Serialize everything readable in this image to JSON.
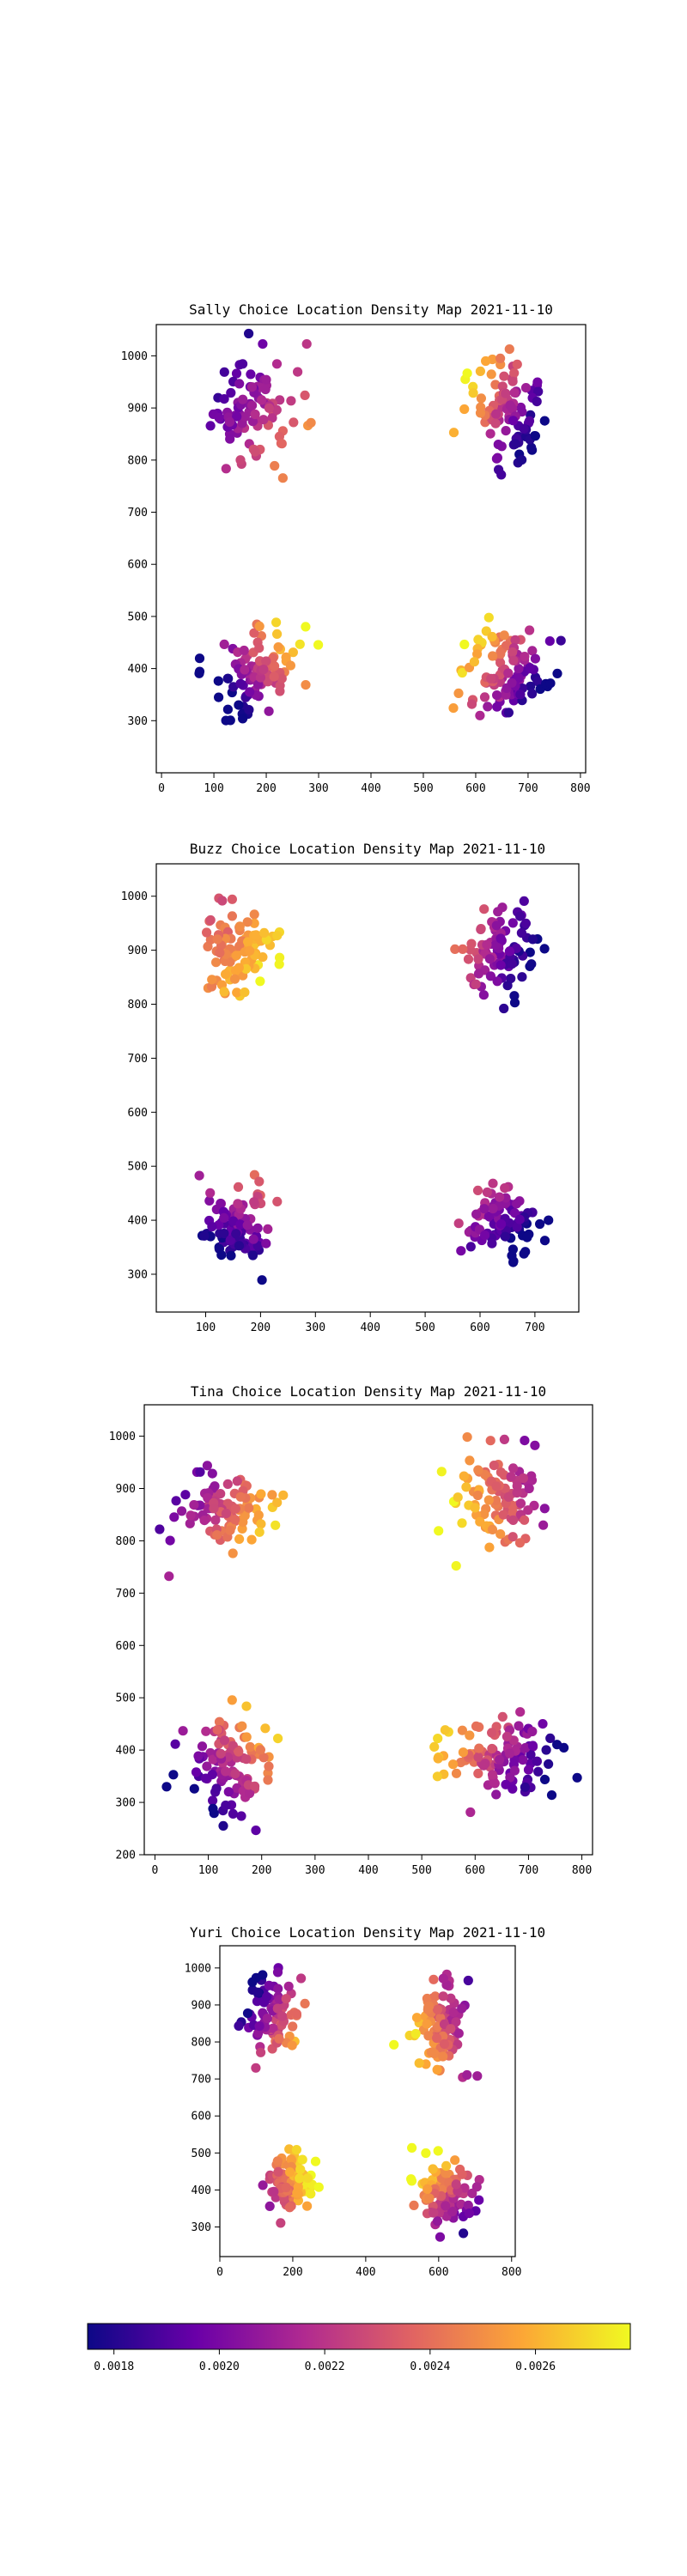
{
  "figure": {
    "colorbar": {
      "colormap": "plasma",
      "colors": [
        "#0d0887",
        "#6a00a8",
        "#b12a90",
        "#e16462",
        "#fca636",
        "#f0f921"
      ],
      "range": [
        0.00175,
        0.00278
      ],
      "ticks": [
        "0.0018",
        "0.0020",
        "0.0022",
        "0.0024",
        "0.0026"
      ],
      "tick_values": [
        0.0018,
        0.002,
        0.0022,
        0.0024,
        0.0026
      ]
    }
  },
  "chart_data": [
    {
      "type": "scatter",
      "title": "Sally Choice Location Density Map 2021-11-10",
      "xlim": [
        -10,
        810
      ],
      "ylim": [
        200,
        1060
      ],
      "xticks": [
        0,
        100,
        200,
        300,
        400,
        500,
        600,
        700,
        800
      ],
      "yticks": [
        300,
        400,
        500,
        600,
        700,
        800,
        900,
        1000
      ],
      "clusters": [
        {
          "cx": 175,
          "cy": 900,
          "n": 95,
          "sx": 45,
          "sy": 48,
          "tone": 0.35,
          "grad": [
            0.25,
            -0.15
          ],
          "seed": 11
        },
        {
          "cx": 660,
          "cy": 900,
          "n": 95,
          "sx": 40,
          "sy": 48,
          "tone": 0.4,
          "grad": [
            -0.45,
            0.25
          ],
          "seed": 12
        },
        {
          "cx": 185,
          "cy": 400,
          "n": 105,
          "sx": 40,
          "sy": 45,
          "tone": 0.45,
          "grad": [
            0.4,
            0.3
          ],
          "seed": 13
        },
        {
          "cx": 655,
          "cy": 395,
          "n": 105,
          "sx": 42,
          "sy": 45,
          "tone": 0.45,
          "grad": [
            -0.45,
            0.3
          ],
          "seed": 14
        }
      ]
    },
    {
      "type": "scatter",
      "title": "Buzz Choice Location Density Map 2021-11-10",
      "xlim": [
        10,
        780
      ],
      "ylim": [
        230,
        1060
      ],
      "xticks": [
        100,
        200,
        300,
        400,
        500,
        600,
        700
      ],
      "yticks": [
        300,
        400,
        500,
        600,
        700,
        800,
        900,
        1000
      ],
      "clusters": [
        {
          "cx": 160,
          "cy": 900,
          "n": 95,
          "sx": 38,
          "sy": 38,
          "tone": 0.75,
          "grad": [
            0.2,
            -0.1
          ],
          "seed": 21
        },
        {
          "cx": 630,
          "cy": 900,
          "n": 90,
          "sx": 35,
          "sy": 40,
          "tone": 0.3,
          "grad": [
            -0.35,
            0.1
          ],
          "seed": 22
        },
        {
          "cx": 155,
          "cy": 390,
          "n": 95,
          "sx": 32,
          "sy": 40,
          "tone": 0.22,
          "grad": [
            0.15,
            0.3
          ],
          "seed": 23
        },
        {
          "cx": 640,
          "cy": 395,
          "n": 90,
          "sx": 35,
          "sy": 35,
          "tone": 0.18,
          "grad": [
            -0.2,
            0.25
          ],
          "seed": 24
        }
      ]
    },
    {
      "type": "scatter",
      "title": "Tina Choice Location Density Map 2021-11-10",
      "xlim": [
        -20,
        820
      ],
      "ylim": [
        200,
        1060
      ],
      "xticks": [
        0,
        100,
        200,
        300,
        400,
        500,
        600,
        700,
        800
      ],
      "yticks": [
        200,
        300,
        400,
        500,
        600,
        700,
        800,
        900,
        1000
      ],
      "clusters": [
        {
          "cx": 130,
          "cy": 855,
          "n": 100,
          "sx": 45,
          "sy": 35,
          "tone": 0.55,
          "grad": [
            0.35,
            -0.15
          ],
          "seed": 31
        },
        {
          "cx": 650,
          "cy": 880,
          "n": 100,
          "sx": 40,
          "sy": 45,
          "tone": 0.6,
          "grad": [
            -0.3,
            -0.1
          ],
          "seed": 32
        },
        {
          "cx": 135,
          "cy": 370,
          "n": 105,
          "sx": 40,
          "sy": 55,
          "tone": 0.4,
          "grad": [
            0.3,
            0.35
          ],
          "seed": 33
        },
        {
          "cx": 650,
          "cy": 390,
          "n": 110,
          "sx": 55,
          "sy": 40,
          "tone": 0.4,
          "grad": [
            -0.45,
            0.15
          ],
          "seed": 34
        }
      ]
    },
    {
      "type": "scatter",
      "title": "Yuri Choice Location Density Map 2021-11-10",
      "xlim": [
        0,
        810
      ],
      "ylim": [
        220,
        1060
      ],
      "xticks": [
        0,
        200,
        400,
        600,
        800
      ],
      "yticks": [
        300,
        400,
        500,
        600,
        700,
        800,
        900,
        1000
      ],
      "clusters": [
        {
          "cx": 140,
          "cy": 880,
          "n": 85,
          "sx": 40,
          "sy": 45,
          "tone": 0.35,
          "grad": [
            0.35,
            -0.2
          ],
          "seed": 41
        },
        {
          "cx": 605,
          "cy": 830,
          "n": 95,
          "sx": 35,
          "sy": 55,
          "tone": 0.6,
          "grad": [
            -0.3,
            -0.1
          ],
          "seed": 42
        },
        {
          "cx": 200,
          "cy": 420,
          "n": 100,
          "sx": 30,
          "sy": 35,
          "tone": 0.75,
          "grad": [
            0.3,
            0.1
          ],
          "seed": 43
        },
        {
          "cx": 620,
          "cy": 390,
          "n": 100,
          "sx": 40,
          "sy": 45,
          "tone": 0.55,
          "grad": [
            -0.25,
            0.3
          ],
          "seed": 44
        }
      ]
    }
  ]
}
